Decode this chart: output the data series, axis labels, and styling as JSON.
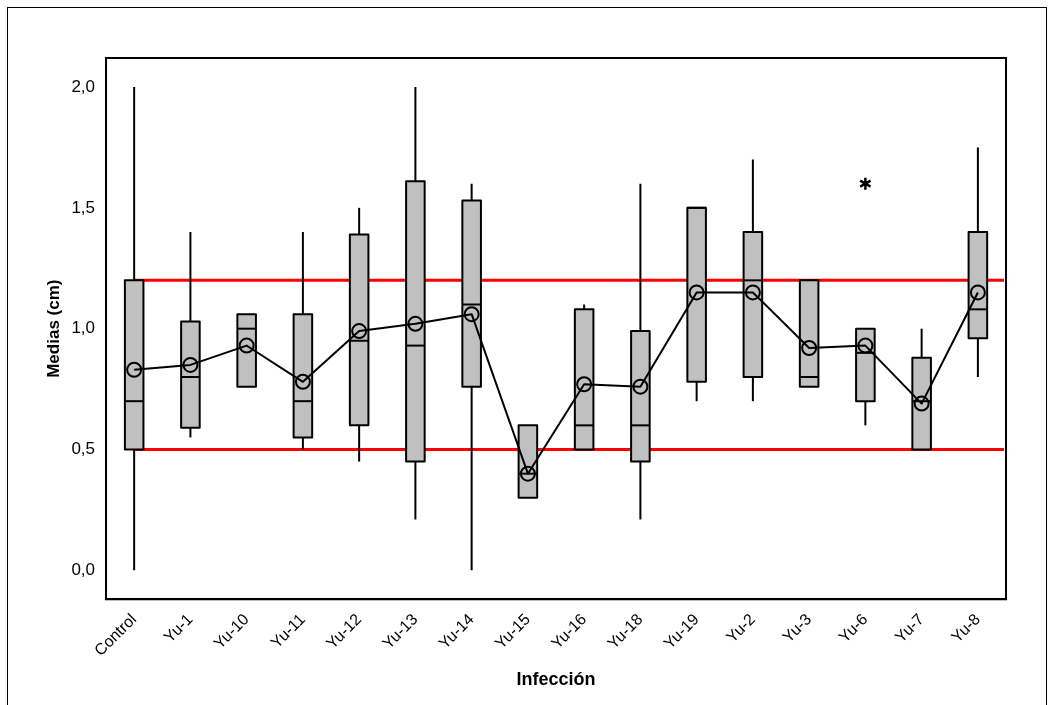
{
  "chart_data": {
    "type": "box",
    "xlabel": "Infección",
    "ylabel": "Medias (cm)",
    "categories": [
      "Control",
      "Yu-1",
      "Yu-10",
      "Yu-11",
      "Yu-12",
      "Yu-13",
      "Yu-14",
      "Yu-15",
      "Yu-16",
      "Yu-18",
      "Yu-19",
      "Yu-2",
      "Yu-3",
      "Yu-6",
      "Yu-7",
      "Yu-8"
    ],
    "color": "#c0c0c0",
    "series": [
      {
        "type": "line",
        "color": "#000000",
        "marker": "circle",
        "values": [
          0.83,
          0.85,
          0.93,
          0.78,
          0.99,
          1.02,
          1.06,
          0.4,
          0.77,
          0.76,
          1.15,
          1.15,
          0.92,
          0.93,
          0.69,
          1.15
        ]
      }
    ],
    "boxes": [
      {
        "low": 0.0,
        "q1": 0.5,
        "median": 0.7,
        "q3": 1.2,
        "high": 2.0
      },
      {
        "low": 0.55,
        "q1": 0.59,
        "median": 0.8,
        "q3": 1.03,
        "high": 1.4
      },
      {
        "low": 0.76,
        "q1": 0.76,
        "median": 1.0,
        "q3": 1.06,
        "high": 1.06
      },
      {
        "low": 0.5,
        "q1": 0.55,
        "median": 0.7,
        "q3": 1.06,
        "high": 1.4
      },
      {
        "low": 0.45,
        "q1": 0.6,
        "median": 0.95,
        "q3": 1.39,
        "high": 1.5
      },
      {
        "low": 0.21,
        "q1": 0.45,
        "median": 0.93,
        "q3": 1.61,
        "high": 2.0
      },
      {
        "low": 0.0,
        "q1": 0.76,
        "median": 1.1,
        "q3": 1.53,
        "high": 1.6
      },
      {
        "low": 0.3,
        "q1": 0.3,
        "median": 0.4,
        "q3": 0.6,
        "high": 0.6
      },
      {
        "low": 0.5,
        "q1": 0.5,
        "median": 0.6,
        "q3": 1.08,
        "high": 1.1
      },
      {
        "low": 0.21,
        "q1": 0.45,
        "median": 0.6,
        "q3": 0.99,
        "high": 1.6
      },
      {
        "low": 0.7,
        "q1": 0.78,
        "median": 1.5,
        "q3": 1.5,
        "high": 1.5
      },
      {
        "low": 0.7,
        "q1": 0.8,
        "median": 1.2,
        "q3": 1.4,
        "high": 1.7
      },
      {
        "low": 0.76,
        "q1": 0.76,
        "median": 0.8,
        "q3": 1.2,
        "high": 1.2
      },
      {
        "low": 0.6,
        "q1": 0.7,
        "median": 0.9,
        "q3": 1.0,
        "high": 1.0,
        "outliers": [
          1.6
        ]
      },
      {
        "low": 0.5,
        "q1": 0.5,
        "median": 0.7,
        "q3": 0.88,
        "high": 1.0
      },
      {
        "low": 0.8,
        "q1": 0.96,
        "median": 1.08,
        "q3": 1.4,
        "high": 1.75
      }
    ],
    "ylim": [
      -0.12,
      2.12
    ],
    "yticks": [
      {
        "value": 0,
        "label": "0,0"
      },
      {
        "value": 0.5,
        "label": "0,5"
      },
      {
        "value": 1,
        "label": "1,0"
      },
      {
        "value": 1.5,
        "label": "1,5"
      },
      {
        "value": 2,
        "label": "2,0"
      }
    ],
    "ref_lines": [
      {
        "axis": "y",
        "value": 1.2,
        "color": "#ff0000"
      },
      {
        "axis": "y",
        "value": 0.5,
        "color": "#ff0000"
      }
    ],
    "grid": false,
    "legend": false
  }
}
